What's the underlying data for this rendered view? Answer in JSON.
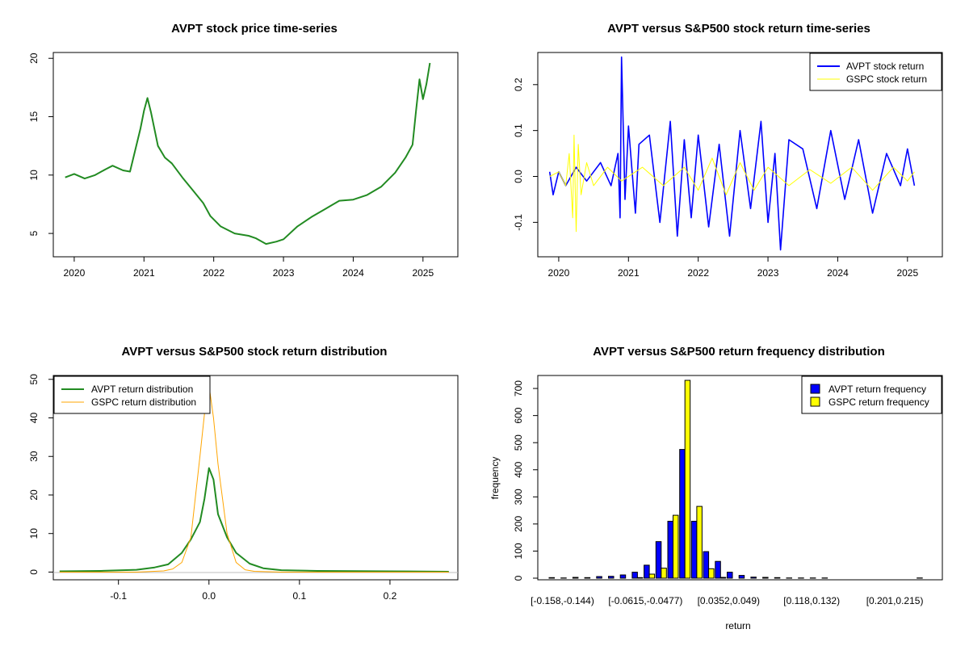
{
  "chart_data": [
    {
      "id": "price",
      "type": "line",
      "title": "AVPT stock price time-series",
      "xlabel": "",
      "ylabel": "",
      "xlim": [
        2019.7,
        2025.5
      ],
      "ylim": [
        3,
        20.5
      ],
      "xticks": [
        "2020",
        "2021",
        "2022",
        "2023",
        "2024",
        "2025"
      ],
      "yticks": [
        "5",
        "10",
        "15",
        "20"
      ],
      "series": [
        {
          "name": "AVPT stock price",
          "color": "#228B22",
          "x": [
            2019.87,
            2020.0,
            2020.15,
            2020.3,
            2020.45,
            2020.55,
            2020.7,
            2020.8,
            2020.95,
            2021.0,
            2021.05,
            2021.1,
            2021.2,
            2021.3,
            2021.4,
            2021.55,
            2021.7,
            2021.85,
            2021.95,
            2022.1,
            2022.3,
            2022.5,
            2022.6,
            2022.75,
            2022.9,
            2023.0,
            2023.2,
            2023.4,
            2023.6,
            2023.8,
            2024.0,
            2024.2,
            2024.4,
            2024.6,
            2024.75,
            2024.85,
            2024.9,
            2024.95,
            2025.0,
            2025.05,
            2025.1
          ],
          "y": [
            9.8,
            10.1,
            9.7,
            10.0,
            10.5,
            10.8,
            10.4,
            10.3,
            14.0,
            15.5,
            16.6,
            15.4,
            12.5,
            11.5,
            11.0,
            9.8,
            8.7,
            7.6,
            6.5,
            5.6,
            5.0,
            4.8,
            4.6,
            4.1,
            4.3,
            4.5,
            5.6,
            6.4,
            7.1,
            7.8,
            7.9,
            8.3,
            9.0,
            10.2,
            11.5,
            12.6,
            15.5,
            18.2,
            16.5,
            17.8,
            19.6
          ]
        }
      ]
    },
    {
      "id": "returns",
      "type": "line",
      "title": "AVPT versus S&P500 stock return time-series",
      "xlabel": "",
      "ylabel": "",
      "xlim": [
        2019.7,
        2025.5
      ],
      "ylim": [
        -0.175,
        0.27
      ],
      "xticks": [
        "2020",
        "2021",
        "2022",
        "2023",
        "2024",
        "2025"
      ],
      "yticks": [
        "-0.1",
        "0.0",
        "0.1",
        "0.2"
      ],
      "legend": [
        "AVPT stock return",
        "GSPC stock return"
      ],
      "series": [
        {
          "name": "AVPT stock return",
          "color": "#0000FF",
          "x": [
            2019.87,
            2019.92,
            2020.0,
            2020.1,
            2020.25,
            2020.4,
            2020.6,
            2020.75,
            2020.85,
            2020.88,
            2020.9,
            2020.95,
            2021.0,
            2021.1,
            2021.15,
            2021.3,
            2021.45,
            2021.6,
            2021.7,
            2021.8,
            2021.9,
            2022.0,
            2022.15,
            2022.3,
            2022.45,
            2022.6,
            2022.75,
            2022.9,
            2023.0,
            2023.1,
            2023.18,
            2023.3,
            2023.5,
            2023.7,
            2023.9,
            2024.1,
            2024.3,
            2024.5,
            2024.7,
            2024.9,
            2025.0,
            2025.1
          ],
          "y": [
            0.01,
            -0.04,
            0.01,
            -0.02,
            0.02,
            -0.01,
            0.03,
            -0.02,
            0.05,
            -0.09,
            0.26,
            -0.05,
            0.11,
            -0.08,
            0.07,
            0.09,
            -0.1,
            0.12,
            -0.13,
            0.08,
            -0.09,
            0.09,
            -0.11,
            0.07,
            -0.13,
            0.1,
            -0.07,
            0.12,
            -0.1,
            0.05,
            -0.16,
            0.08,
            0.06,
            -0.07,
            0.1,
            -0.05,
            0.08,
            -0.08,
            0.05,
            -0.02,
            0.06,
            -0.02
          ]
        },
        {
          "name": "GSPC stock return",
          "color": "#FFFF00",
          "x": [
            2019.87,
            2020.0,
            2020.1,
            2020.15,
            2020.2,
            2020.22,
            2020.25,
            2020.28,
            2020.32,
            2020.4,
            2020.5,
            2020.7,
            2020.9,
            2021.2,
            2021.5,
            2021.8,
            2022.0,
            2022.2,
            2022.4,
            2022.6,
            2022.8,
            2023.0,
            2023.3,
            2023.6,
            2023.9,
            2024.2,
            2024.5,
            2024.8,
            2025.0,
            2025.1
          ],
          "y": [
            0.0,
            0.01,
            -0.02,
            0.05,
            -0.09,
            0.09,
            -0.12,
            0.07,
            -0.04,
            0.03,
            -0.02,
            0.02,
            -0.01,
            0.02,
            -0.02,
            0.02,
            -0.03,
            0.04,
            -0.04,
            0.03,
            -0.03,
            0.02,
            -0.02,
            0.015,
            -0.015,
            0.02,
            -0.03,
            0.02,
            -0.01,
            0.01
          ]
        }
      ]
    },
    {
      "id": "density",
      "type": "line",
      "title": "AVPT versus S&P500 stock return distribution",
      "xlabel": "",
      "ylabel": "",
      "xlim": [
        -0.172,
        0.275
      ],
      "ylim": [
        -2,
        51
      ],
      "xticks": [
        "-0.1",
        "0.0",
        "0.1",
        "0.2"
      ],
      "yticks": [
        "0",
        "10",
        "20",
        "30",
        "40",
        "50"
      ],
      "legend": [
        "AVPT return distribution",
        "GSPC return distribution"
      ],
      "series": [
        {
          "name": "AVPT return distribution",
          "color": "#228B22",
          "x": [
            -0.165,
            -0.12,
            -0.08,
            -0.06,
            -0.045,
            -0.03,
            -0.02,
            -0.01,
            -0.005,
            0.0,
            0.005,
            0.01,
            0.02,
            0.03,
            0.045,
            0.06,
            0.08,
            0.12,
            0.2,
            0.265
          ],
          "y": [
            0.2,
            0.3,
            0.6,
            1.2,
            2.0,
            5.0,
            8.5,
            13,
            19,
            27,
            24,
            15,
            9,
            5,
            2.2,
            1.0,
            0.5,
            0.3,
            0.2,
            0.1
          ]
        },
        {
          "name": "GSPC return distribution",
          "color": "#FFA500",
          "x": [
            -0.165,
            -0.08,
            -0.05,
            -0.04,
            -0.03,
            -0.02,
            -0.01,
            -0.005,
            0.0,
            0.005,
            0.01,
            0.02,
            0.03,
            0.04,
            0.05,
            0.08,
            0.265
          ],
          "y": [
            0,
            0,
            0.3,
            0.8,
            2.5,
            9,
            30,
            41,
            48.5,
            40,
            28,
            10,
            2.5,
            0.6,
            0.2,
            0,
            0
          ]
        }
      ]
    },
    {
      "id": "histogram",
      "type": "bar",
      "title": "AVPT versus S&P500 return frequency distribution",
      "xlabel": "return",
      "ylabel": "frequency",
      "ylim": [
        0,
        730
      ],
      "yticks": [
        "0",
        "100",
        "200",
        "300",
        "400",
        "500",
        "600",
        "700"
      ],
      "tick_labels": [
        "[-0.158,-0.144)",
        "[-0.0615,-0.0477)",
        "[0.0352,0.049)",
        "[0.118,0.132)",
        "[0.201,0.215)"
      ],
      "legend": [
        "AVPT return frequency",
        "GSPC return frequency"
      ],
      "categories": [
        "b1",
        "b2",
        "b3",
        "b4",
        "b5",
        "b6",
        "b7",
        "b8",
        "b9",
        "b10",
        "b11",
        "b12",
        "b13",
        "b14",
        "b15",
        "b16",
        "b17",
        "b18",
        "b19",
        "b20",
        "b21",
        "b22",
        "b23",
        "b24",
        "b25",
        "b26",
        "b27",
        "b28",
        "b29",
        "b30",
        "b31",
        "b32"
      ],
      "series": [
        {
          "name": "AVPT return frequency",
          "color": "#0000FF",
          "values": [
            2,
            1,
            3,
            2,
            6,
            7,
            12,
            22,
            48,
            135,
            210,
            475,
            210,
            98,
            62,
            22,
            10,
            4,
            3,
            2,
            1,
            1,
            1,
            1,
            0,
            0,
            0,
            0,
            0,
            0,
            0,
            1
          ]
        },
        {
          "name": "GSPC return frequency",
          "color": "#FFFF00",
          "values": [
            0,
            0,
            0,
            0,
            0,
            0,
            0,
            2,
            15,
            37,
            232,
            730,
            265,
            35,
            3,
            0,
            0,
            0,
            0,
            0,
            0,
            0,
            0,
            0,
            0,
            0,
            0,
            0,
            0,
            0,
            0,
            0
          ]
        }
      ]
    }
  ]
}
